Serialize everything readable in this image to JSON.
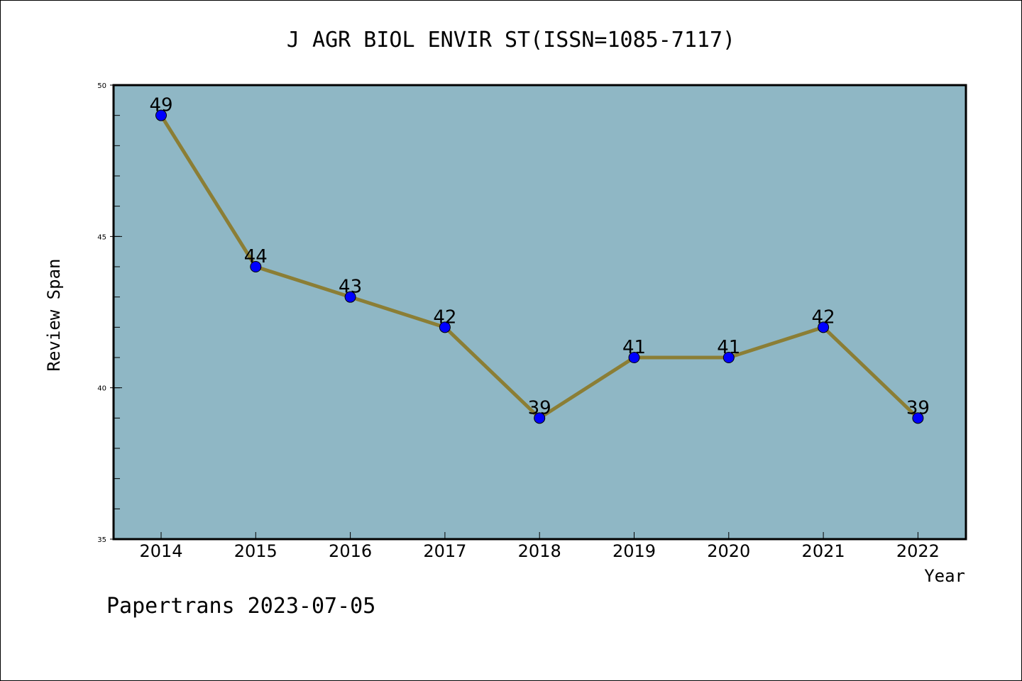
{
  "chart_data": {
    "type": "line",
    "title": "J AGR BIOL ENVIR ST(ISSN=1085-7117)",
    "xlabel": "Year",
    "ylabel": "Review Span",
    "x": [
      "2014",
      "2015",
      "2016",
      "2017",
      "2018",
      "2019",
      "2020",
      "2021",
      "2022"
    ],
    "values": [
      49,
      44,
      43,
      42,
      39,
      41,
      41,
      42,
      39
    ],
    "data_labels": [
      "49",
      "44",
      "43",
      "42",
      "39",
      "41",
      "41",
      "42",
      "39"
    ],
    "ylim": [
      35,
      50
    ],
    "yticks": [
      35,
      40,
      45,
      50
    ],
    "ytick_labels": [
      "35",
      "40",
      "45",
      "50"
    ],
    "y_minor_tick_step": 1,
    "grid": false,
    "legend": "none",
    "colors": {
      "plot_background": "#8fb7c5",
      "line": "#8b7e35",
      "marker": "#0000ff",
      "frame": "#000000"
    }
  },
  "footer": {
    "text": "Papertrans 2023-07-05"
  }
}
